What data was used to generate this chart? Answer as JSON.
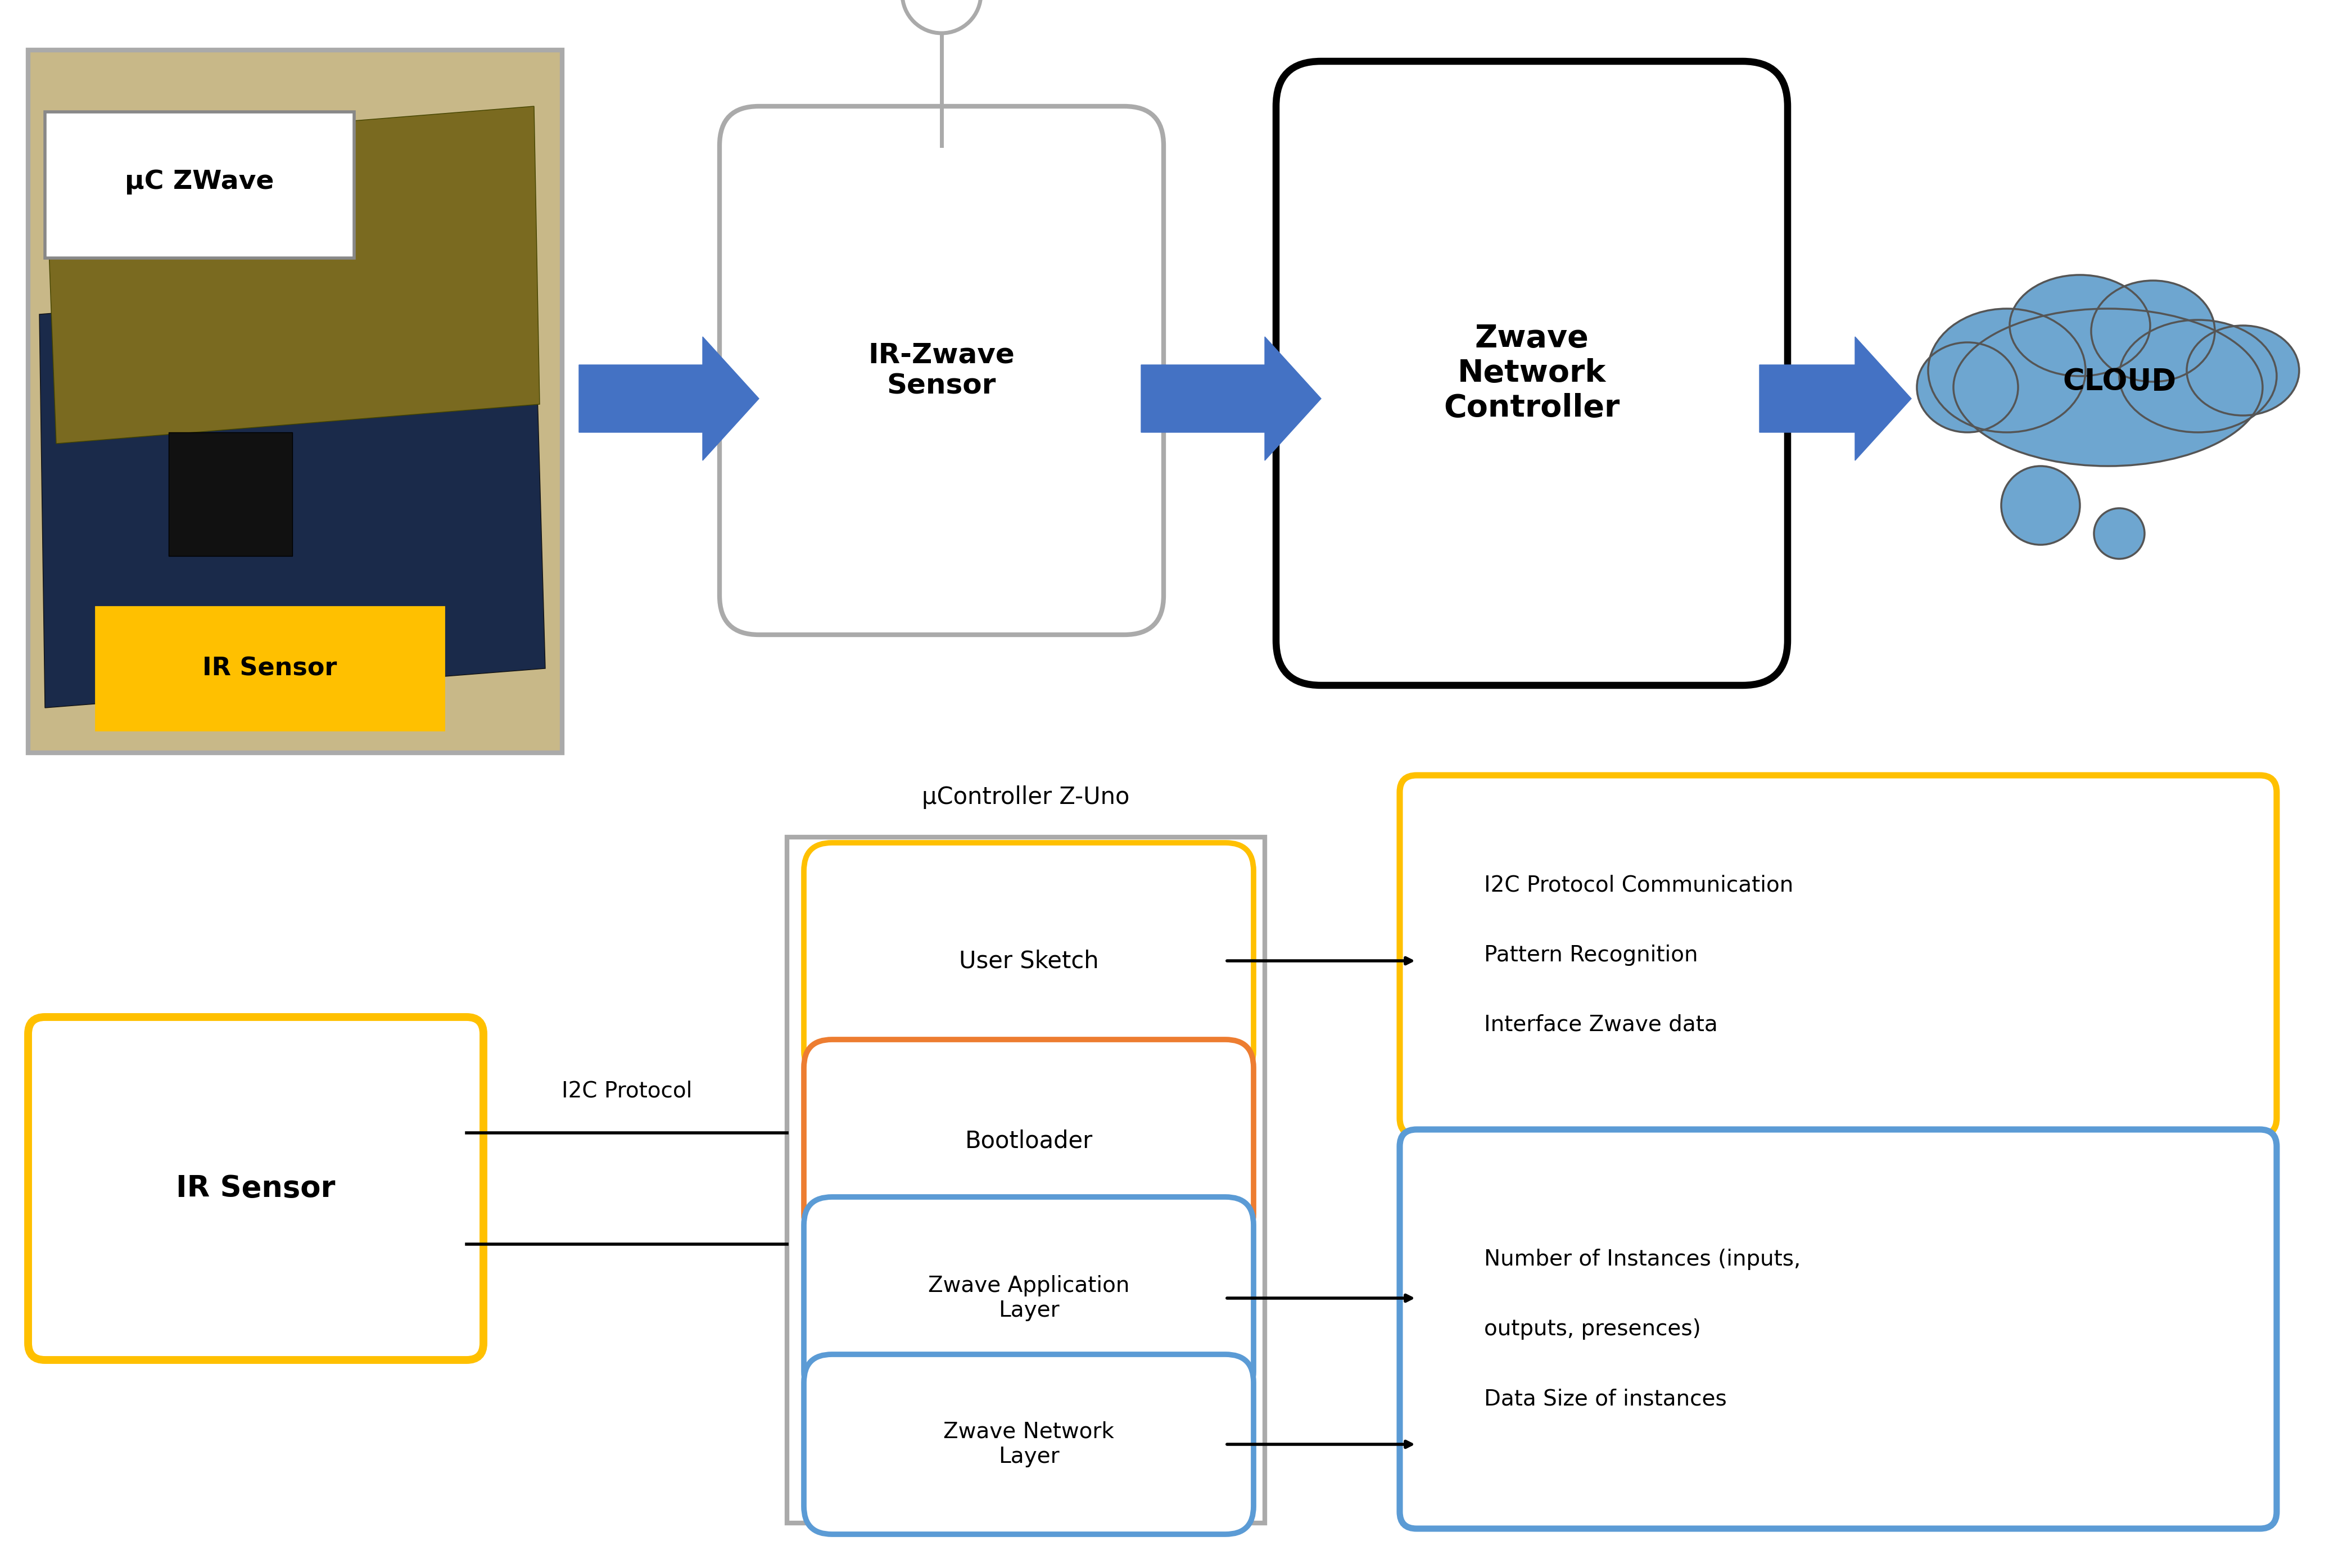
{
  "bg_color": "#ffffff",
  "top": {
    "photo_label_uc": "μC ZWave",
    "photo_label_ir": "IR Sensor",
    "ir_zwave_text": "IR-Zwave\nSensor",
    "zwave_net_text": "Zwave\nNetwork\nController",
    "cloud_text": "CLOUD"
  },
  "bottom": {
    "ir_sensor_text": "IR Sensor",
    "i2c_label": "I2C Protocol",
    "controller_label": "μController Z-Uno",
    "user_sketch_text": "User Sketch",
    "bootloader_text": "Bootloader",
    "zwave_app_text": "Zwave Application\nLayer",
    "zwave_net_text2": "Zwave Network\nLayer",
    "yellow_info_text": "I2C Protocol Communication\n\nPattern Recognition\n\nInterface Zwave data",
    "blue_info_text": "Number of Instances (inputs,\n\noutputs, presences)\n\nData Size of instances"
  },
  "colors": {
    "blue_arrow": "#4472C4",
    "black": "#000000",
    "gray_border": "#aaaaaa",
    "yellow_box": "#FFC000",
    "orange_box": "#ED7D31",
    "blue_box": "#5B9BD5",
    "cloud_blue": "#6EA6D0",
    "cloud_outline": "#555555",
    "photo_border": "#aaaaaa"
  }
}
